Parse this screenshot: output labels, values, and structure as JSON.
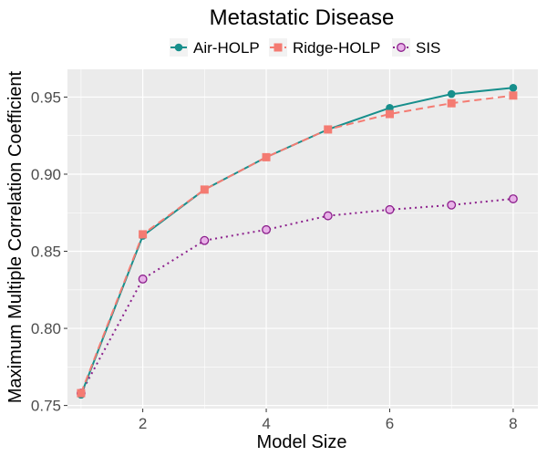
{
  "chart_data": {
    "type": "line",
    "title": "Metastatic Disease",
    "xlabel": "Model Size",
    "ylabel": "Maximum Multiple Correlation Coefficient",
    "xlim": [
      0.78,
      8.4
    ],
    "ylim": [
      0.748,
      0.968
    ],
    "x_ticks": [
      2,
      4,
      6,
      8
    ],
    "y_ticks": [
      0.75,
      0.8,
      0.85,
      0.9,
      0.95
    ],
    "y_tick_labels": [
      "0.75",
      "0.80",
      "0.85",
      "0.90",
      "0.95"
    ],
    "legend_position": "top",
    "x": [
      1,
      2,
      3,
      4,
      5,
      6,
      7,
      8
    ],
    "series": [
      {
        "name": "Air-HOLP",
        "color": "#178f8c",
        "line": "solid",
        "marker": "circle",
        "values": [
          0.757,
          0.86,
          0.89,
          0.911,
          0.929,
          0.943,
          0.952,
          0.956
        ]
      },
      {
        "name": "Ridge-HOLP",
        "color": "#f47b72",
        "line": "dashed",
        "marker": "square",
        "values": [
          0.758,
          0.861,
          0.89,
          0.911,
          0.929,
          0.939,
          0.946,
          0.951
        ]
      },
      {
        "name": "SIS",
        "color": "#8c1f8c",
        "fill": "#e8b1e8",
        "line": "dotted",
        "marker": "circle-open",
        "values": [
          0.758,
          0.832,
          0.857,
          0.864,
          0.873,
          0.877,
          0.88,
          0.884
        ]
      }
    ]
  }
}
